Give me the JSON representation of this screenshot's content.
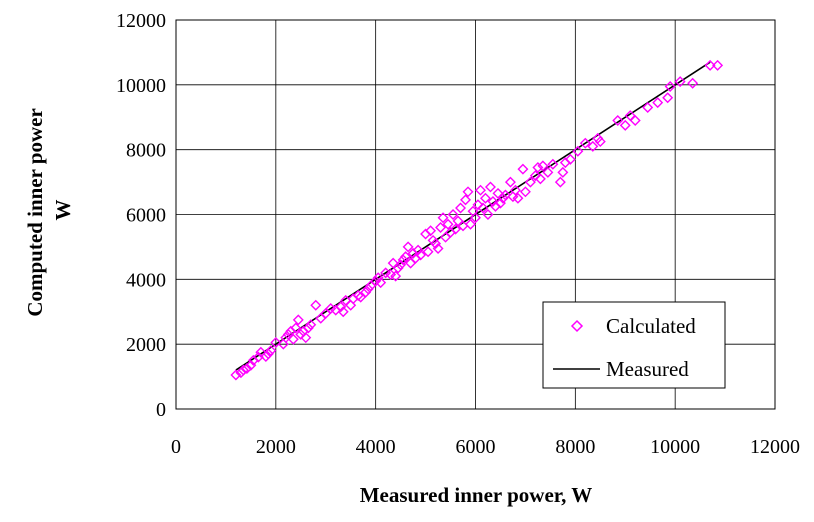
{
  "chart_data": {
    "type": "scatter",
    "xlabel": "Measured inner power, W",
    "ylabel_line1": "Computed inner power",
    "ylabel_line2": "W",
    "xlim": [
      0,
      12000
    ],
    "ylim": [
      0,
      12000
    ],
    "x_ticks": [
      "0",
      "2000",
      "4000",
      "6000",
      "8000",
      "10000",
      "12000"
    ],
    "y_ticks": [
      "0",
      "2000",
      "4000",
      "6000",
      "8000",
      "10000",
      "12000"
    ],
    "grid": true,
    "legend_position": "bottom-right",
    "colors": {
      "calculated": "#ff00ff",
      "measured": "#000000"
    },
    "series": [
      {
        "name": "Calculated",
        "style": "diamond-markers",
        "points": [
          [
            1200,
            1050
          ],
          [
            1300,
            1120
          ],
          [
            1350,
            1200
          ],
          [
            1420,
            1250
          ],
          [
            1500,
            1350
          ],
          [
            1550,
            1500
          ],
          [
            1650,
            1600
          ],
          [
            1700,
            1750
          ],
          [
            1800,
            1620
          ],
          [
            1850,
            1700
          ],
          [
            1900,
            1800
          ],
          [
            2000,
            2050
          ],
          [
            2150,
            2000
          ],
          [
            2200,
            2200
          ],
          [
            2250,
            2300
          ],
          [
            2300,
            2400
          ],
          [
            2350,
            2150
          ],
          [
            2400,
            2500
          ],
          [
            2450,
            2750
          ],
          [
            2500,
            2300
          ],
          [
            2550,
            2400
          ],
          [
            2600,
            2200
          ],
          [
            2650,
            2500
          ],
          [
            2700,
            2600
          ],
          [
            2800,
            3200
          ],
          [
            2900,
            2800
          ],
          [
            3000,
            2950
          ],
          [
            3100,
            3100
          ],
          [
            3200,
            3050
          ],
          [
            3300,
            3150
          ],
          [
            3350,
            3000
          ],
          [
            3400,
            3350
          ],
          [
            3500,
            3200
          ],
          [
            3550,
            3400
          ],
          [
            3650,
            3500
          ],
          [
            3700,
            3450
          ],
          [
            3800,
            3600
          ],
          [
            3850,
            3700
          ],
          [
            3900,
            3800
          ],
          [
            4000,
            3950
          ],
          [
            4050,
            4050
          ],
          [
            4100,
            3900
          ],
          [
            4200,
            4200
          ],
          [
            4300,
            4150
          ],
          [
            4350,
            4500
          ],
          [
            4400,
            4100
          ],
          [
            4450,
            4350
          ],
          [
            4500,
            4450
          ],
          [
            4550,
            4600
          ],
          [
            4600,
            4700
          ],
          [
            4650,
            5000
          ],
          [
            4700,
            4500
          ],
          [
            4750,
            4800
          ],
          [
            4800,
            4650
          ],
          [
            4850,
            4900
          ],
          [
            4900,
            4750
          ],
          [
            5000,
            5400
          ],
          [
            5050,
            4850
          ],
          [
            5100,
            5500
          ],
          [
            5150,
            5200
          ],
          [
            5200,
            5100
          ],
          [
            5250,
            4950
          ],
          [
            5300,
            5600
          ],
          [
            5350,
            5900
          ],
          [
            5400,
            5300
          ],
          [
            5450,
            5700
          ],
          [
            5500,
            5450
          ],
          [
            5550,
            6000
          ],
          [
            5600,
            5550
          ],
          [
            5650,
            5800
          ],
          [
            5700,
            6200
          ],
          [
            5750,
            5650
          ],
          [
            5800,
            6450
          ],
          [
            5850,
            6700
          ],
          [
            5900,
            5700
          ],
          [
            5950,
            6100
          ],
          [
            6000,
            5900
          ],
          [
            6050,
            6300
          ],
          [
            6100,
            6750
          ],
          [
            6150,
            6200
          ],
          [
            6200,
            6500
          ],
          [
            6250,
            6000
          ],
          [
            6300,
            6850
          ],
          [
            6350,
            6400
          ],
          [
            6400,
            6250
          ],
          [
            6450,
            6650
          ],
          [
            6500,
            6350
          ],
          [
            6550,
            6500
          ],
          [
            6600,
            6600
          ],
          [
            6700,
            7000
          ],
          [
            6750,
            6550
          ],
          [
            6800,
            6750
          ],
          [
            6850,
            6500
          ],
          [
            6950,
            7400
          ],
          [
            7000,
            6700
          ],
          [
            7100,
            7000
          ],
          [
            7200,
            7200
          ],
          [
            7250,
            7450
          ],
          [
            7300,
            7100
          ],
          [
            7350,
            7500
          ],
          [
            7450,
            7300
          ],
          [
            7550,
            7550
          ],
          [
            7700,
            7000
          ],
          [
            7750,
            7300
          ],
          [
            7800,
            7600
          ],
          [
            7900,
            7700
          ],
          [
            8050,
            7950
          ],
          [
            8200,
            8200
          ],
          [
            8350,
            8100
          ],
          [
            8450,
            8350
          ],
          [
            8500,
            8250
          ],
          [
            8850,
            8900
          ],
          [
            9000,
            8750
          ],
          [
            9100,
            9050
          ],
          [
            9200,
            8900
          ],
          [
            9450,
            9300
          ],
          [
            9650,
            9450
          ],
          [
            9850,
            9600
          ],
          [
            9900,
            9950
          ],
          [
            10100,
            10100
          ],
          [
            10350,
            10050
          ],
          [
            10700,
            10600
          ],
          [
            10850,
            10600
          ]
        ]
      },
      {
        "name": "Measured",
        "style": "line",
        "points": [
          [
            1200,
            1200
          ],
          [
            10700,
            10700
          ]
        ]
      }
    ]
  }
}
